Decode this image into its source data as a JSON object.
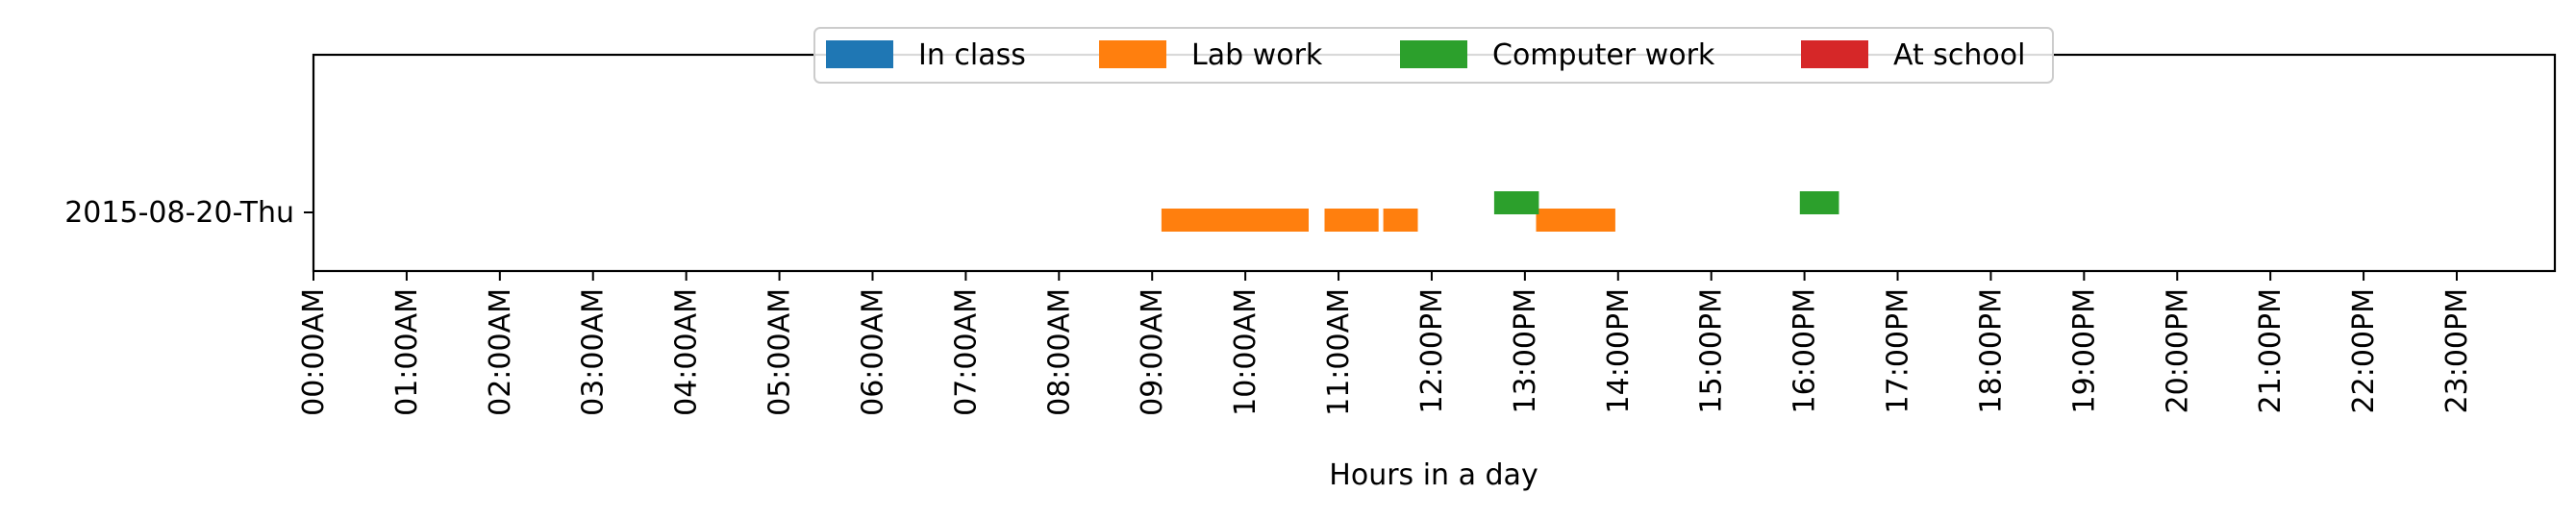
{
  "chart_data": {
    "type": "timeline",
    "title": "",
    "xlabel": "Hours in a day",
    "ylabel": "",
    "xlim": [
      0,
      24
    ],
    "x_ticks": [
      {
        "value": 0,
        "label": "00:00AM"
      },
      {
        "value": 1,
        "label": "01:00AM"
      },
      {
        "value": 2,
        "label": "02:00AM"
      },
      {
        "value": 3,
        "label": "03:00AM"
      },
      {
        "value": 4,
        "label": "04:00AM"
      },
      {
        "value": 5,
        "label": "05:00AM"
      },
      {
        "value": 6,
        "label": "06:00AM"
      },
      {
        "value": 7,
        "label": "07:00AM"
      },
      {
        "value": 8,
        "label": "08:00AM"
      },
      {
        "value": 9,
        "label": "09:00AM"
      },
      {
        "value": 10,
        "label": "10:00AM"
      },
      {
        "value": 11,
        "label": "11:00AM"
      },
      {
        "value": 12,
        "label": "12:00PM"
      },
      {
        "value": 13,
        "label": "13:00PM"
      },
      {
        "value": 14,
        "label": "14:00PM"
      },
      {
        "value": 15,
        "label": "15:00PM"
      },
      {
        "value": 16,
        "label": "16:00PM"
      },
      {
        "value": 17,
        "label": "17:00PM"
      },
      {
        "value": 18,
        "label": "18:00PM"
      },
      {
        "value": 19,
        "label": "19:00PM"
      },
      {
        "value": 20,
        "label": "20:00PM"
      },
      {
        "value": 21,
        "label": "21:00PM"
      },
      {
        "value": 22,
        "label": "22:00PM"
      },
      {
        "value": 23,
        "label": "23:00PM"
      }
    ],
    "y_categories": [
      "2015-08-20-Thu"
    ],
    "legend_placement": "upper center",
    "grid": false,
    "series": [
      {
        "name": "In class",
        "color": "#1f77b4",
        "lane": 0,
        "intervals": []
      },
      {
        "name": "Lab work",
        "color": "#ff7f0e",
        "lane": -1,
        "intervals": [
          [
            9.1,
            10.68
          ],
          [
            10.85,
            11.43
          ],
          [
            11.48,
            11.85
          ],
          [
            13.12,
            13.97
          ]
        ]
      },
      {
        "name": "Computer work",
        "color": "#2ca02c",
        "lane": 1,
        "intervals": [
          [
            12.67,
            13.15
          ],
          [
            15.95,
            16.37
          ]
        ]
      },
      {
        "name": "At school",
        "color": "#d62728",
        "lane": 0,
        "intervals": []
      }
    ]
  }
}
